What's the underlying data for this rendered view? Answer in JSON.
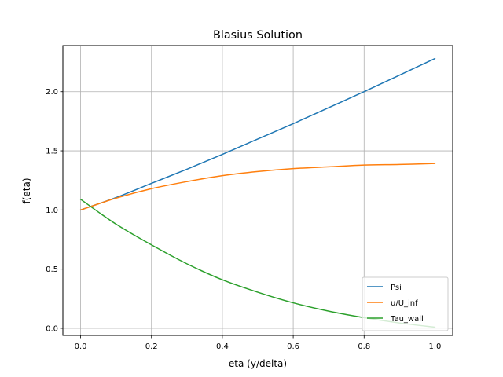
{
  "chart_data": {
    "type": "line",
    "title": "Blasius Solution",
    "xlabel": "eta (y/delta)",
    "ylabel": "f(eta)",
    "xlim": [
      -0.05,
      1.05
    ],
    "ylim": [
      -0.06,
      2.39
    ],
    "xticks": [
      0.0,
      0.2,
      0.4,
      0.6,
      0.8,
      1.0
    ],
    "xtick_labels": [
      "0.0",
      "0.2",
      "0.4",
      "0.6",
      "0.8",
      "1.0"
    ],
    "yticks": [
      0.0,
      0.5,
      1.0,
      1.5,
      2.0
    ],
    "ytick_labels": [
      "0.0",
      "0.5",
      "1.0",
      "1.5",
      "2.0"
    ],
    "grid": true,
    "legend_position": "lower-right",
    "x": [
      0.0,
      0.1,
      0.2,
      0.3,
      0.4,
      0.5,
      0.6,
      0.7,
      0.8,
      0.9,
      1.0
    ],
    "series": [
      {
        "name": "Psi",
        "color": "#1f77b4",
        "values": [
          1.0,
          1.105,
          1.225,
          1.345,
          1.47,
          1.6,
          1.73,
          1.865,
          2.0,
          2.14,
          2.28
        ]
      },
      {
        "name": "u/U_inf",
        "color": "#ff7f0e",
        "values": [
          1.0,
          1.1,
          1.18,
          1.24,
          1.29,
          1.325,
          1.35,
          1.365,
          1.38,
          1.385,
          1.393
        ]
      },
      {
        "name": "Tau_wall",
        "color": "#2ca02c",
        "values": [
          1.09,
          0.88,
          0.705,
          0.545,
          0.41,
          0.305,
          0.215,
          0.145,
          0.09,
          0.045,
          0.01
        ]
      }
    ]
  }
}
